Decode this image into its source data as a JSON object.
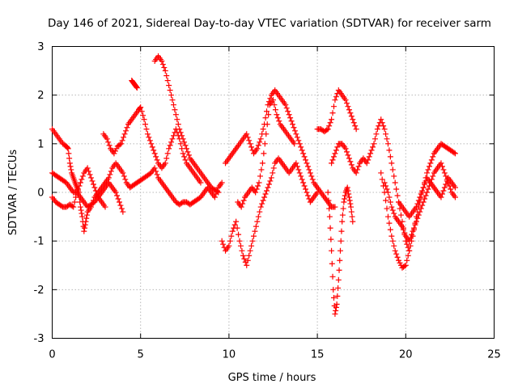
{
  "chart_data": {
    "type": "scatter",
    "title": "Day 146 of 2021, Sidereal Day-to-day VTEC variation (SDTVAR) for receiver sarm",
    "xlabel": "GPS time / hours",
    "ylabel": "SDTVAR / TECUs",
    "xlim": [
      0,
      25
    ],
    "ylim": [
      -3,
      3
    ],
    "x_ticks": [
      0,
      5,
      10,
      15,
      20,
      25
    ],
    "y_ticks": [
      -3,
      -2,
      -1,
      0,
      1,
      2,
      3
    ],
    "x_tick_labels": [
      "0",
      "5",
      "10",
      "15",
      "20",
      "25"
    ],
    "y_tick_labels": [
      "-3",
      "-2",
      "-1",
      "0",
      "1",
      "2",
      "3"
    ],
    "grid": true,
    "marker": "+",
    "color": "#ff0000",
    "series": [
      {
        "name": "trace-1",
        "x": [
          0.0,
          0.2,
          0.4,
          0.6,
          0.8,
          0.9,
          1.0,
          1.1,
          1.2,
          1.3,
          1.4,
          1.5,
          1.6,
          1.7,
          1.8,
          1.9,
          2.0,
          2.2,
          2.4,
          2.6,
          2.8,
          3.0
        ],
        "y": [
          1.3,
          1.2,
          1.1,
          1.0,
          0.95,
          0.9,
          0.6,
          0.4,
          0.3,
          0.2,
          0.1,
          0.0,
          -0.3,
          -0.5,
          -0.8,
          -0.6,
          -0.4,
          -0.3,
          -0.1,
          0.0,
          0.1,
          0.2
        ]
      },
      {
        "name": "trace-2",
        "x": [
          0.0,
          0.2,
          0.4,
          0.6,
          0.8,
          1.0,
          1.2,
          1.4,
          1.6,
          1.8,
          2.0,
          2.2,
          2.4,
          2.6,
          2.8,
          3.0,
          3.2,
          3.4,
          3.6,
          3.8,
          4.0
        ],
        "y": [
          0.4,
          0.35,
          0.3,
          0.25,
          0.2,
          0.1,
          0.0,
          0.0,
          -0.1,
          -0.2,
          -0.3,
          -0.25,
          -0.2,
          -0.1,
          0.0,
          0.1,
          0.2,
          0.1,
          0.0,
          -0.2,
          -0.4
        ]
      },
      {
        "name": "trace-3",
        "x": [
          0.0,
          0.2,
          0.4,
          0.6,
          0.8,
          1.0,
          1.2,
          1.4,
          1.6,
          1.8,
          2.0,
          2.2,
          2.4,
          2.6,
          2.8,
          3.0
        ],
        "y": [
          -0.1,
          -0.2,
          -0.25,
          -0.3,
          -0.3,
          -0.25,
          -0.3,
          0.0,
          0.2,
          0.4,
          0.5,
          0.3,
          0.1,
          -0.1,
          -0.2,
          -0.3
        ]
      },
      {
        "name": "trace-4",
        "x": [
          2.9,
          3.1,
          3.3,
          3.5,
          3.7,
          3.9,
          4.1,
          4.3,
          4.5,
          4.7,
          4.9,
          5.0,
          5.2,
          5.4,
          5.6,
          5.8,
          6.0,
          6.2,
          6.4,
          6.6,
          6.8,
          7.0,
          7.2,
          7.4,
          7.6,
          7.8,
          8.0,
          8.2,
          8.4
        ],
        "y": [
          1.2,
          1.1,
          0.9,
          0.8,
          0.95,
          1.0,
          1.2,
          1.4,
          1.5,
          1.6,
          1.7,
          1.75,
          1.5,
          1.2,
          1.0,
          0.8,
          0.6,
          0.5,
          0.6,
          0.9,
          1.1,
          1.3,
          1.1,
          0.8,
          0.6,
          0.5,
          0.4,
          0.3,
          0.2
        ]
      },
      {
        "name": "trace-5",
        "x": [
          4.5,
          4.6,
          4.7,
          4.8
        ],
        "y": [
          2.3,
          2.25,
          2.2,
          2.15
        ]
      },
      {
        "name": "trace-6",
        "x": [
          5.8,
          6.0,
          6.2,
          6.4,
          6.6,
          6.8,
          7.0,
          7.2,
          7.4,
          7.6,
          7.8,
          8.0,
          8.2,
          8.4,
          8.6,
          8.8,
          9.0,
          9.2,
          9.4
        ],
        "y": [
          2.7,
          2.8,
          2.7,
          2.5,
          2.2,
          1.9,
          1.6,
          1.3,
          1.1,
          0.9,
          0.7,
          0.6,
          0.5,
          0.4,
          0.3,
          0.2,
          0.1,
          0.05,
          0.0
        ]
      },
      {
        "name": "trace-7",
        "x": [
          3.0,
          3.2,
          3.4,
          3.6,
          3.8,
          4.0,
          4.2,
          4.4,
          4.6,
          4.8,
          5.0,
          5.2,
          5.4,
          5.6,
          5.8,
          6.0,
          6.2,
          6.4,
          6.6,
          6.8,
          7.0,
          7.2,
          7.4,
          7.6,
          7.8,
          8.0,
          8.2,
          8.4,
          8.6,
          8.8,
          9.0,
          9.2,
          9.4,
          9.6
        ],
        "y": [
          0.2,
          0.3,
          0.5,
          0.6,
          0.5,
          0.4,
          0.2,
          0.1,
          0.15,
          0.2,
          0.25,
          0.3,
          0.35,
          0.4,
          0.5,
          0.3,
          0.2,
          0.1,
          0.0,
          -0.1,
          -0.2,
          -0.25,
          -0.2,
          -0.2,
          -0.25,
          -0.2,
          -0.15,
          -0.1,
          0.0,
          0.1,
          0.0,
          -0.1,
          0.1,
          0.2
        ]
      },
      {
        "name": "trace-8",
        "x": [
          9.6,
          9.8,
          10.0,
          10.2,
          10.4,
          10.6,
          10.8,
          11.0,
          11.2,
          11.4,
          11.6,
          11.8,
          12.0,
          12.2,
          12.4,
          12.6,
          12.8,
          13.0,
          13.2,
          13.4,
          13.6,
          13.8,
          14.0,
          14.2,
          14.4,
          14.6,
          14.8,
          15.0
        ],
        "y": [
          -1.0,
          -1.2,
          -1.1,
          -0.8,
          -0.6,
          -1.0,
          -1.3,
          -1.5,
          -1.2,
          -0.9,
          -0.6,
          -0.3,
          -0.1,
          0.1,
          0.3,
          0.6,
          0.7,
          0.6,
          0.5,
          0.4,
          0.5,
          0.6,
          0.4,
          0.2,
          0.0,
          -0.2,
          -0.1,
          0.0
        ]
      },
      {
        "name": "trace-9",
        "x": [
          9.8,
          10.0,
          10.2,
          10.4,
          10.6,
          10.8,
          11.0,
          11.2,
          11.4,
          11.6,
          11.8,
          12.0,
          12.2,
          12.4,
          12.6,
          12.8,
          13.0,
          13.2,
          13.4,
          13.6,
          13.8,
          14.0,
          14.2,
          14.4,
          14.6,
          14.8,
          15.0,
          15.2,
          15.4,
          15.6,
          15.8,
          16.0
        ],
        "y": [
          0.6,
          0.7,
          0.8,
          0.9,
          1.0,
          1.1,
          1.2,
          1.0,
          0.8,
          0.9,
          1.1,
          1.4,
          1.8,
          2.0,
          2.1,
          2.0,
          1.9,
          1.8,
          1.6,
          1.4,
          1.2,
          1.0,
          0.8,
          0.6,
          0.4,
          0.2,
          0.1,
          0.0,
          -0.1,
          -0.2,
          -0.3,
          -0.3
        ]
      },
      {
        "name": "trace-10",
        "x": [
          10.5,
          10.7,
          10.9,
          11.1,
          11.3,
          11.5,
          11.7,
          11.9,
          12.1,
          12.3,
          12.5,
          12.7,
          12.9,
          13.1,
          13.3,
          13.5,
          13.7
        ],
        "y": [
          -0.2,
          -0.3,
          -0.1,
          0.0,
          0.1,
          0.0,
          0.2,
          0.6,
          1.2,
          1.8,
          1.9,
          1.6,
          1.4,
          1.3,
          1.2,
          1.1,
          1.0
        ]
      },
      {
        "name": "trace-11",
        "x": [
          15.0,
          15.2,
          15.4,
          15.6,
          15.8,
          16.0,
          16.2,
          16.4,
          16.6,
          16.8,
          17.0,
          17.2
        ],
        "y": [
          1.3,
          1.3,
          1.25,
          1.3,
          1.5,
          1.9,
          2.1,
          2.0,
          1.9,
          1.7,
          1.5,
          1.3
        ]
      },
      {
        "name": "trace-12",
        "x": [
          15.6,
          15.7,
          15.8,
          15.9,
          16.0,
          16.1,
          16.2,
          16.3,
          16.4,
          16.5,
          16.6,
          16.7,
          16.8,
          16.9,
          17.0
        ],
        "y": [
          0.0,
          -0.5,
          -1.2,
          -2.0,
          -2.5,
          -2.3,
          -1.8,
          -1.2,
          -0.6,
          -0.2,
          0.0,
          0.1,
          -0.1,
          -0.3,
          -0.6
        ]
      },
      {
        "name": "trace-13",
        "x": [
          15.8,
          16.0,
          16.2,
          16.4,
          16.6,
          16.8,
          17.0,
          17.2,
          17.4,
          17.6,
          17.8,
          18.0,
          18.2,
          18.4,
          18.6,
          18.8,
          19.0,
          19.2,
          19.4,
          19.6,
          19.8,
          20.0,
          20.2
        ],
        "y": [
          0.6,
          0.8,
          1.0,
          1.0,
          0.9,
          0.7,
          0.5,
          0.4,
          0.6,
          0.7,
          0.6,
          0.8,
          1.0,
          1.3,
          1.5,
          1.3,
          1.0,
          0.6,
          0.2,
          -0.2,
          -0.6,
          -1.0,
          -1.2
        ]
      },
      {
        "name": "trace-14",
        "x": [
          18.6,
          18.8,
          19.0,
          19.2,
          19.4,
          19.6,
          19.8,
          20.0,
          20.2,
          20.4,
          20.6,
          20.8,
          21.0,
          21.2,
          21.4,
          21.6,
          21.8,
          22.0,
          22.2,
          22.4,
          22.6,
          22.8
        ],
        "y": [
          0.4,
          0.0,
          -0.5,
          -0.9,
          -1.2,
          -1.4,
          -1.55,
          -1.5,
          -1.2,
          -0.9,
          -0.5,
          -0.2,
          0.1,
          0.4,
          0.6,
          0.8,
          0.9,
          1.0,
          0.95,
          0.9,
          0.85,
          0.8
        ]
      },
      {
        "name": "trace-15",
        "x": [
          18.8,
          19.0,
          19.2,
          19.4,
          19.6,
          19.8,
          20.0,
          20.2,
          20.4,
          20.6,
          20.8,
          21.0,
          21.2,
          21.4,
          21.6,
          21.8,
          22.0,
          22.2,
          22.4,
          22.6,
          22.8
        ],
        "y": [
          0.2,
          0.0,
          -0.3,
          -0.5,
          -0.6,
          -0.7,
          -0.9,
          -1.0,
          -0.8,
          -0.6,
          -0.4,
          -0.2,
          0.0,
          0.2,
          0.4,
          0.5,
          0.6,
          0.4,
          0.2,
          0.0,
          -0.1
        ]
      },
      {
        "name": "trace-16",
        "x": [
          19.6,
          19.8,
          20.0,
          20.2,
          20.4,
          20.6,
          20.8,
          21.0,
          21.2,
          21.4,
          21.6,
          21.8,
          22.0,
          22.2,
          22.4,
          22.6,
          22.8
        ],
        "y": [
          -0.2,
          -0.3,
          -0.4,
          -0.5,
          -0.4,
          -0.3,
          -0.1,
          0.1,
          0.3,
          0.2,
          0.1,
          0.0,
          -0.1,
          0.1,
          0.3,
          0.2,
          0.1
        ]
      }
    ]
  }
}
